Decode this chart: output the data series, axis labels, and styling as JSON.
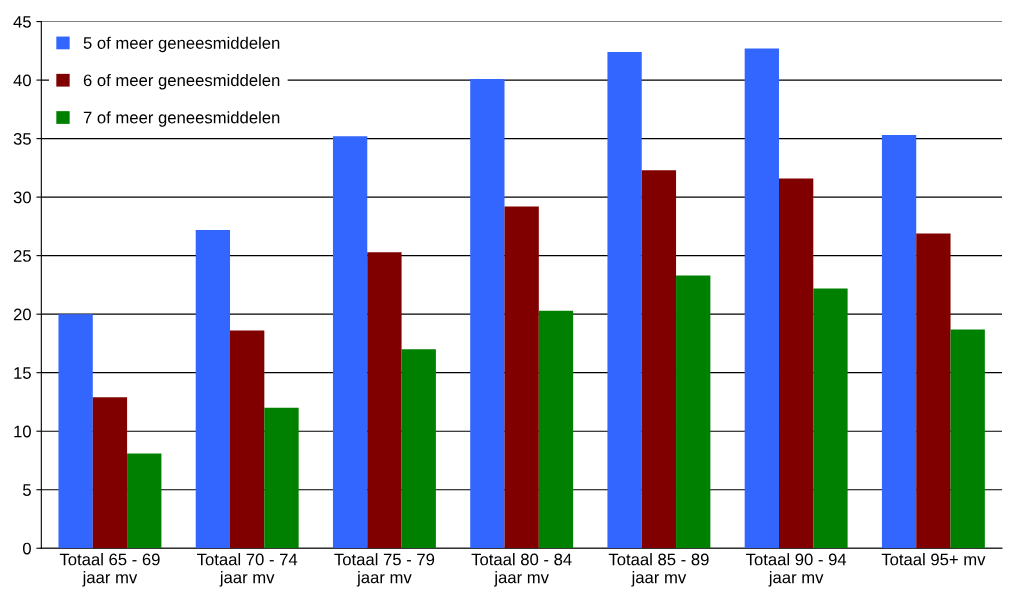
{
  "chart_data": {
    "type": "bar",
    "categories": [
      "Totaal 65 - 69\njaar mv",
      "Totaal 70 - 74\njaar mv",
      "Totaal 75 - 79\njaar mv",
      "Totaal 80 - 84\njaar mv",
      "Totaal 85 - 89\njaar mv",
      "Totaal 90 - 94\njaar mv",
      "Totaal 95+ mv"
    ],
    "series": [
      {
        "name": "5 of meer geneesmiddelen",
        "color": "#3366ff",
        "values": [
          20.0,
          27.2,
          35.2,
          40.1,
          42.4,
          42.7,
          35.3
        ]
      },
      {
        "name": "6 of meer geneesmiddelen",
        "color": "#800000",
        "values": [
          12.9,
          18.6,
          25.3,
          29.2,
          32.3,
          31.6,
          26.9
        ]
      },
      {
        "name": "7 of meer geneesmiddelen",
        "color": "#008000",
        "values": [
          8.1,
          12.0,
          17.0,
          20.3,
          23.3,
          22.2,
          18.7
        ]
      }
    ],
    "ylim": [
      0,
      45
    ],
    "yticks": [
      0,
      5,
      10,
      15,
      20,
      25,
      30,
      35,
      40,
      45
    ],
    "grid": "y",
    "legend": "top left"
  }
}
